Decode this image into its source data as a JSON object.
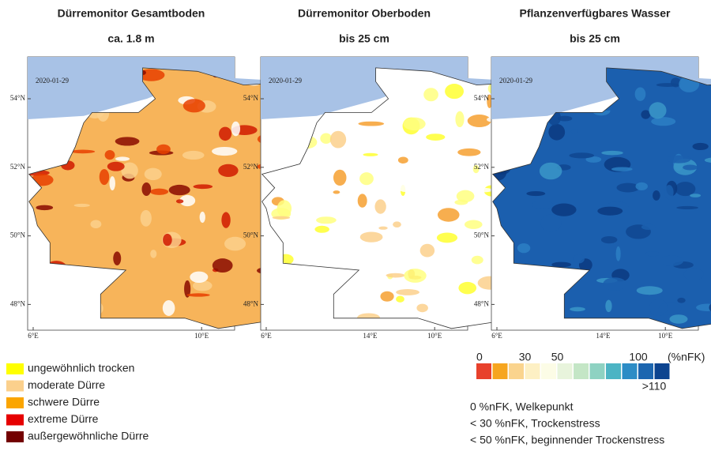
{
  "panels": [
    {
      "title": "Dürremonitor Gesamtboden",
      "subtitle": "ca. 1.8 m",
      "date": "2020-01-29"
    },
    {
      "title": "Dürremonitor Oberboden",
      "subtitle": "bis 25 cm",
      "date": "2020-01-29"
    },
    {
      "title": "Pflanzenverfügbares Wasser",
      "subtitle": "bis 25 cm",
      "date": "2020-01-29"
    }
  ],
  "lat_labels": [
    "54°N",
    "52°N",
    "50°N",
    "48°N"
  ],
  "lon_labels": [
    "6°E",
    "10°E",
    "14°E"
  ],
  "drought_legend": [
    {
      "label": "ungewöhnlich trocken",
      "color": "#ffff00"
    },
    {
      "label": "moderate Dürre",
      "color": "#fbd08c"
    },
    {
      "label": "schwere Dürre",
      "color": "#fba500"
    },
    {
      "label": "extreme Dürre",
      "color": "#e60000"
    },
    {
      "label": "außergewöhnliche Dürre",
      "color": "#730000"
    }
  ],
  "water_legend": {
    "scale_labels": [
      "0",
      "30",
      "50",
      "100"
    ],
    "unit": "(%nFK)",
    "top_label": ">110",
    "colors": [
      "#e8412c",
      "#f6a51e",
      "#fad48e",
      "#fdf0c4",
      "#fcfce6",
      "#e8f4dc",
      "#c4e6c6",
      "#8ed2c2",
      "#4cb4c4",
      "#2c8cc6",
      "#1c66b0",
      "#0c4490"
    ],
    "notes": [
      "0 %nFK, Welkepunkt",
      "< 30 %nFK, Trockenstress",
      "< 50 %nFK, beginnender Trockenstress"
    ]
  }
}
